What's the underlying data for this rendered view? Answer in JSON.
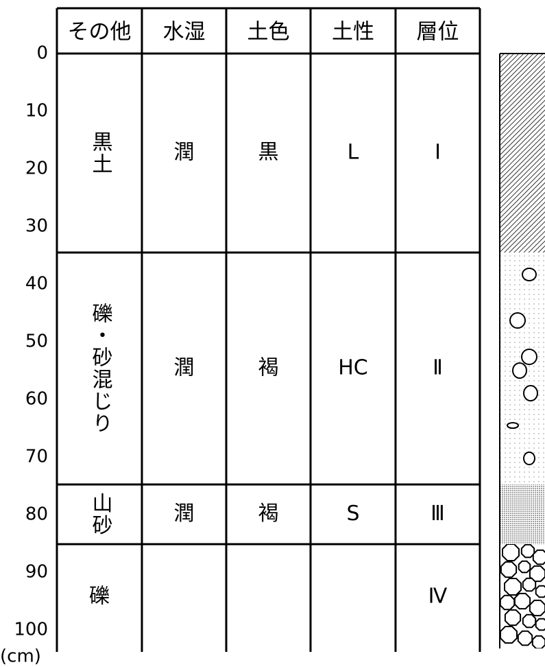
{
  "table": {
    "header": [
      "その他",
      "水湿",
      "土色",
      "土性",
      "層位"
    ],
    "rows": [
      [
        "黒土",
        "潤",
        "黒",
        "L",
        "Ⅰ"
      ],
      [
        "礫・砂混じり",
        "潤",
        "褐",
        "HC",
        "Ⅱ"
      ],
      [
        "山砂",
        "潤",
        "褐",
        "S",
        "Ⅲ"
      ],
      [
        "礫",
        null,
        null,
        null,
        "Ⅳ"
      ]
    ]
  },
  "depth_scale": {
    "labels": [
      "0",
      "10",
      "20",
      "30",
      "40",
      "50",
      "60",
      "70",
      "80",
      "90",
      "100"
    ],
    "unit": "(cm)"
  }
}
